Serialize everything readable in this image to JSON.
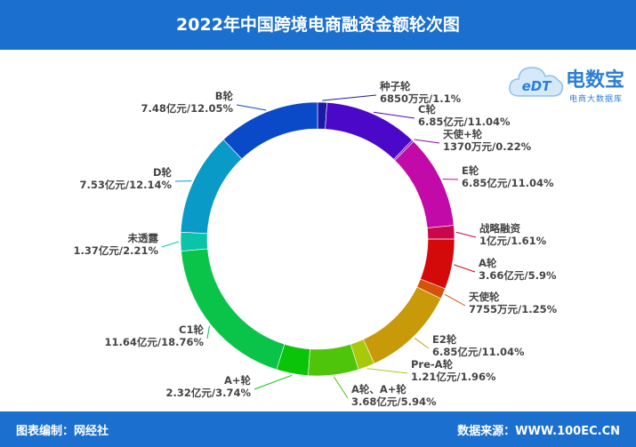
{
  "title": "2022年中国跨境电商融资金额轮次图",
  "footer": {
    "left": "图表编制：网经社",
    "right": "数据来源：WWW.100EC.CN"
  },
  "logo": {
    "main": "电数宝",
    "sub": "电商大数据库",
    "badge": "eDT"
  },
  "colors": {
    "header": "#1a6fcf",
    "footer": "#1a6fcf",
    "logo": "#2a7fd8"
  },
  "chart_data": {
    "type": "pie",
    "donut": true,
    "title": "2022年中国跨境电商融资金额轮次图",
    "slices": [
      {
        "name": "种子轮",
        "amount": "6850万元",
        "percent": 1.1,
        "color": "#1a1aa6"
      },
      {
        "name": "C轮",
        "amount": "6.85亿元",
        "percent": 11.04,
        "color": "#4b08c8"
      },
      {
        "name": "天使+轮",
        "amount": "1370万元",
        "percent": 0.22,
        "color": "#8a0aa8"
      },
      {
        "name": "E轮",
        "amount": "6.85亿元",
        "percent": 11.04,
        "color": "#c20aa8"
      },
      {
        "name": "战略融资",
        "amount": "1亿元",
        "percent": 1.61,
        "color": "#c8084a"
      },
      {
        "name": "A轮",
        "amount": "3.66亿元",
        "percent": 5.9,
        "color": "#d40a0a"
      },
      {
        "name": "天使轮",
        "amount": "7755万元",
        "percent": 1.25,
        "color": "#d4520a"
      },
      {
        "name": "E2轮",
        "amount": "6.85亿元",
        "percent": 11.04,
        "color": "#c89a0a"
      },
      {
        "name": "Pre-A轮",
        "amount": "1.21亿元",
        "percent": 1.96,
        "color": "#a8c80a"
      },
      {
        "name": "A轮、A+轮",
        "amount": "3.68亿元",
        "percent": 5.94,
        "color": "#4ec40a"
      },
      {
        "name": "A+轮",
        "amount": "2.32亿元",
        "percent": 3.74,
        "color": "#0ac40a"
      },
      {
        "name": "C1轮",
        "amount": "11.64亿元",
        "percent": 18.76,
        "color": "#0ac44a"
      },
      {
        "name": "未透露",
        "amount": "1.37亿元",
        "percent": 2.21,
        "color": "#0ac4aa"
      },
      {
        "name": "D轮",
        "amount": "7.53亿元",
        "percent": 12.14,
        "color": "#0a9ac8"
      },
      {
        "name": "B轮",
        "amount": "7.48亿元",
        "percent": 12.05,
        "color": "#0a4ac8"
      }
    ]
  }
}
